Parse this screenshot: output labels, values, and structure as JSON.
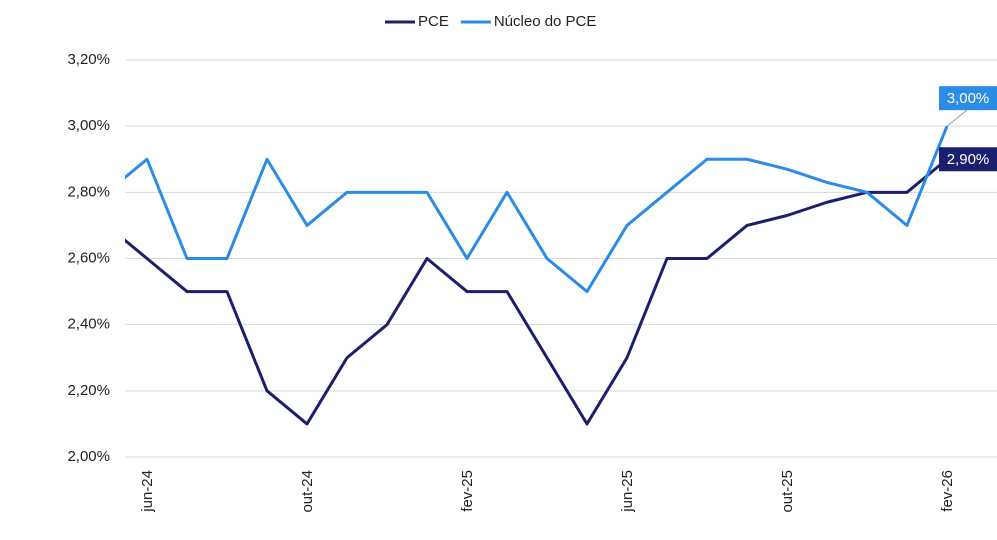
{
  "chart_data": {
    "type": "line",
    "categories": [
      null,
      "jun-24",
      null,
      null,
      null,
      "out-24",
      null,
      null,
      null,
      "fev-25",
      null,
      null,
      null,
      "jun-25",
      null,
      null,
      null,
      "out-25",
      null,
      null,
      null,
      "fev-26"
    ],
    "series": [
      {
        "name": "PCE",
        "color": "#1b1f6e",
        "values": [
          2.7,
          2.6,
          2.5,
          2.5,
          2.2,
          2.1,
          2.3,
          2.4,
          2.6,
          2.5,
          2.5,
          2.3,
          2.1,
          2.3,
          2.6,
          2.6,
          2.7,
          2.73,
          2.77,
          2.8,
          2.8,
          2.9
        ],
        "value_labels": [
          null,
          null,
          null,
          null,
          null,
          null,
          null,
          null,
          null,
          null,
          null,
          null,
          null,
          null,
          null,
          null,
          null,
          null,
          null,
          null,
          null,
          "2,90%"
        ]
      },
      {
        "name": "Núcleo do PCE",
        "color": "#2b8ce6",
        "values": [
          2.8,
          2.9,
          2.6,
          2.6,
          2.9,
          2.7,
          2.8,
          2.8,
          2.8,
          2.6,
          2.8,
          2.6,
          2.5,
          2.7,
          2.8,
          2.9,
          2.9,
          2.87,
          2.83,
          2.8,
          2.7,
          3.0
        ],
        "value_labels": [
          null,
          null,
          null,
          null,
          null,
          null,
          null,
          null,
          null,
          null,
          null,
          null,
          null,
          null,
          null,
          null,
          null,
          null,
          null,
          null,
          null,
          "3,00%"
        ]
      }
    ],
    "ylim": [
      2.0,
      3.2
    ],
    "yticks": [
      {
        "value": 2.0,
        "label": "2,00%"
      },
      {
        "value": 2.2,
        "label": "2,20%"
      },
      {
        "value": 2.4,
        "label": "2,40%"
      },
      {
        "value": 2.6,
        "label": "2,60%"
      },
      {
        "value": 2.8,
        "label": "2,80%"
      },
      {
        "value": 3.0,
        "label": "3,00%"
      },
      {
        "value": 3.2,
        "label": "3,20%"
      }
    ],
    "grid": true,
    "legend": "top"
  }
}
